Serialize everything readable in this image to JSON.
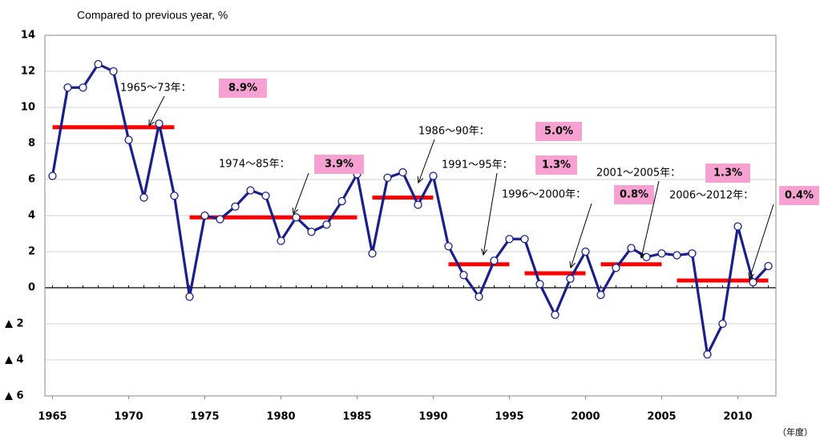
{
  "chart_data": {
    "type": "line",
    "subtitle": "Compared to previous year, %",
    "x_unit_label": "（年度）",
    "x": [
      1965,
      1966,
      1967,
      1968,
      1969,
      1970,
      1971,
      1972,
      1973,
      1974,
      1975,
      1976,
      1977,
      1978,
      1979,
      1980,
      1981,
      1982,
      1983,
      1984,
      1985,
      1986,
      1987,
      1988,
      1989,
      1990,
      1991,
      1992,
      1993,
      1994,
      1995,
      1996,
      1997,
      1998,
      1999,
      2000,
      2001,
      2002,
      2003,
      2004,
      2005,
      2006,
      2007,
      2008,
      2009,
      2010,
      2011,
      2012
    ],
    "series": [
      {
        "color": "#1a1f8c",
        "values": [
          6.2,
          11.1,
          11.1,
          12.4,
          12.0,
          8.2,
          5.0,
          9.1,
          5.1,
          -0.5,
          4.0,
          3.8,
          4.5,
          5.4,
          5.1,
          2.6,
          3.9,
          3.1,
          3.5,
          4.8,
          6.3,
          1.9,
          6.1,
          6.4,
          4.6,
          6.2,
          2.3,
          0.7,
          -0.5,
          1.5,
          2.7,
          2.7,
          0.2,
          -1.5,
          0.5,
          2.0,
          -0.4,
          1.1,
          2.2,
          1.7,
          1.9,
          1.8,
          1.9,
          -3.7,
          -2.0,
          3.4,
          0.3,
          1.2
        ]
      }
    ],
    "annotations": [
      {
        "label": "1965～73年：",
        "value": 8.9,
        "value_label": "8.9%",
        "start": 1965,
        "end": 1973
      },
      {
        "label": "1974～85年：",
        "value": 3.9,
        "value_label": "3.9%",
        "start": 1974,
        "end": 1985
      },
      {
        "label": "1986～90年：",
        "value": 5.0,
        "value_label": "5.0%",
        "start": 1986,
        "end": 1990
      },
      {
        "label": "1991～95年：",
        "value": 1.3,
        "value_label": "1.3%",
        "start": 1991,
        "end": 1995
      },
      {
        "label": "1996～2000年：",
        "value": 0.8,
        "value_label": "0.8%",
        "start": 1996,
        "end": 2000
      },
      {
        "label": "2001～2005年：",
        "value": 1.3,
        "value_label": "1.3%",
        "start": 2001,
        "end": 2005
      },
      {
        "label": "2006～2012年：",
        "value": 0.4,
        "value_label": "0.4%",
        "start": 2006,
        "end": 2012
      }
    ],
    "annotation_color": "#ff0000",
    "label_box_color": "#f7a1d3",
    "xlim": [
      1964.5,
      2012.5
    ],
    "xticks": [
      1965,
      1970,
      1975,
      1980,
      1985,
      1990,
      1995,
      2000,
      2005,
      2010
    ],
    "ylim": [
      -6,
      14
    ],
    "yticks": [
      {
        "value": -6,
        "label": "▲ 6"
      },
      {
        "value": -4,
        "label": "▲ 4"
      },
      {
        "value": -2,
        "label": "▲ 2"
      },
      0,
      2,
      4,
      6,
      8,
      10,
      12,
      14
    ],
    "grid": true
  }
}
